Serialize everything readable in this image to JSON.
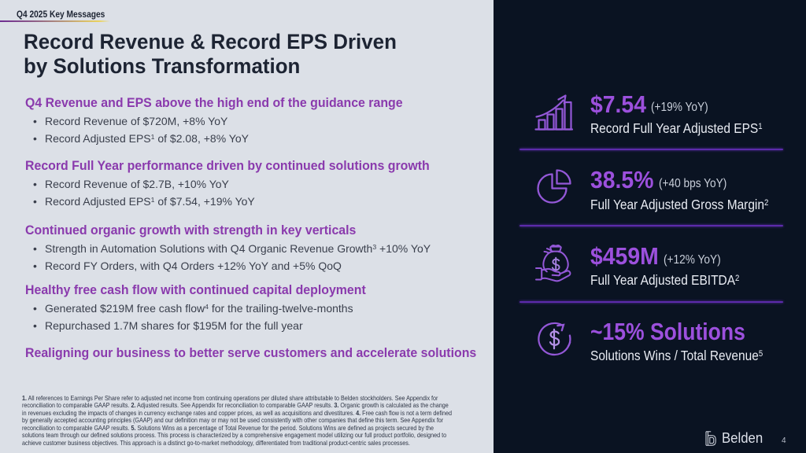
{
  "slide": {
    "eyebrow": "Q4 2025 Key Messages",
    "title_lines": [
      "Record Revenue & Record EPS Driven",
      "by Solutions Transformation"
    ],
    "page_number": "4",
    "logo_text": "Belden"
  },
  "colors": {
    "light_background": "#dce0e7",
    "dark_background": "#0a1322",
    "heading_purple": "#8a3aad",
    "value_purple": "#9c50dd",
    "icon_purple": "#9458d8",
    "divider_purple": "#5c2bab",
    "title_navy": "#1d2433",
    "underline_gradient": [
      "#6f2c92",
      "#ecd45e"
    ]
  },
  "sections": [
    {
      "heading": [
        {
          "t": "Q4 Revenue and EPS above the high end of the guidance range"
        }
      ],
      "bullets": [
        [
          {
            "t": "Record Revenue of $720M, +8% YoY"
          }
        ],
        [
          {
            "t": "Record Adjusted EPS"
          },
          {
            "t": "1",
            "sup": true
          },
          {
            "t": " of $2.08, +8% YoY"
          }
        ]
      ]
    },
    {
      "heading": [
        {
          "t": "Record Full Year performance driven by continued solutions growth"
        }
      ],
      "bullets": [
        [
          {
            "t": "Record Revenue of $2.7B, +10% YoY"
          }
        ],
        [
          {
            "t": "Record Adjusted EPS"
          },
          {
            "t": "1",
            "sup": true
          },
          {
            "t": " of $7.54, +19% YoY"
          }
        ]
      ]
    },
    {
      "heading": [
        {
          "t": "Continued organic growth with strength in key verticals"
        }
      ],
      "bullets": [
        [
          {
            "t": "Strength in Automation Solutions with Q4 Organic Revenue Growth"
          },
          {
            "t": "3",
            "sup": true
          },
          {
            "t": " +10% YoY"
          }
        ],
        [
          {
            "t": "Record FY Orders, with Q4 Orders +12% YoY and +5% QoQ"
          }
        ]
      ]
    },
    {
      "heading": [
        {
          "t": "Healthy free cash flow with continued capital deployment"
        }
      ],
      "bullets": [
        [
          {
            "t": "Generated $219M free cash flow"
          },
          {
            "t": "4",
            "sup": true
          },
          {
            "t": " for the trailing-twelve-months"
          }
        ],
        [
          {
            "t": "Repurchased 1.7M shares for $195M for the full year"
          }
        ]
      ]
    },
    {
      "heading": [
        {
          "t": "Realigning our business to better serve customers and accelerate solutions"
        }
      ],
      "bullets": []
    }
  ],
  "kpis": [
    {
      "icon": "growth-chart-icon",
      "value": "$7.54",
      "qualifier": "(+19% YoY)",
      "label": [
        {
          "t": "Record Full Year Adjusted EPS"
        },
        {
          "t": "1",
          "sup": true
        }
      ]
    },
    {
      "icon": "pie-chart-icon",
      "value": "38.5%",
      "qualifier": "(+40 bps YoY)",
      "label": [
        {
          "t": "Full Year Adjusted Gross Margin"
        },
        {
          "t": "2",
          "sup": true
        }
      ]
    },
    {
      "icon": "money-bag-icon",
      "value": "$459M",
      "qualifier": "(+12% YoY)",
      "label": [
        {
          "t": "Full Year Adjusted EBITDA"
        },
        {
          "t": "2",
          "sup": true
        }
      ]
    },
    {
      "icon": "dollar-cycle-icon",
      "value": "~15% Solutions",
      "qualifier": "",
      "label": [
        {
          "t": "Solutions Wins / Total Revenue"
        },
        {
          "t": "5",
          "sup": true
        }
      ]
    }
  ],
  "footnote_lines": [
    [
      {
        "t": "1.",
        "b": true
      },
      {
        "t": " All references to Earnings Per Share refer to adjusted net income from continuing operations per diluted share attributable to Belden stockholders. See Appendix for"
      }
    ],
    [
      {
        "t": "reconciliation to comparable GAAP results. "
      },
      {
        "t": "2.",
        "b": true
      },
      {
        "t": " Adjusted results.  See Appendix for reconciliation to comparable GAAP results. "
      },
      {
        "t": "3.",
        "b": true
      },
      {
        "t": " Organic growth is calculated as the change"
      }
    ],
    [
      {
        "t": "in revenues excluding the impacts of changes in currency exchange rates and copper prices, as well as acquisitions and divestitures. "
      },
      {
        "t": "4.",
        "b": true
      },
      {
        "t": " Free cash flow is not a term defined"
      }
    ],
    [
      {
        "t": "by generally accepted accounting principles (GAAP) and our definition may or may not be used consistently with other companies that define this term.  See Appendix for"
      }
    ],
    [
      {
        "t": "reconciliation to comparable GAAP results. "
      },
      {
        "t": "5.",
        "b": true
      },
      {
        "t": " Solutions Wins as a percentage of Total Revenue for the period. Solutions Wins are defined as projects secured by the"
      }
    ],
    [
      {
        "t": "solutions team through our defined solutions process. This process is characterized by a comprehensive engagement model utilizing our full product portfolio, designed to"
      }
    ],
    [
      {
        "t": "achieve customer business objectives. This approach is a distinct go-to-market methodology, differentiated from traditional product-centric sales processes."
      }
    ]
  ]
}
